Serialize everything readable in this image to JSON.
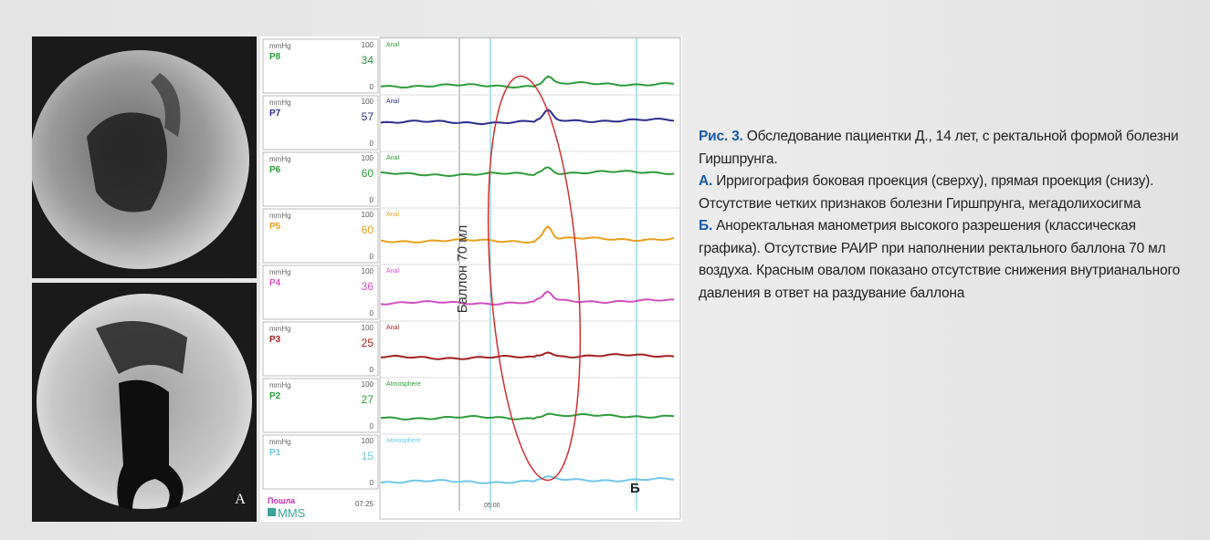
{
  "figure": {
    "panel_a_label": "А",
    "panel_b_label": "Б",
    "balloon_label": "Баллон 70 мл",
    "unit": "mmHg",
    "scale_max": 100,
    "scale_min": 0,
    "channels": [
      {
        "name": "P8",
        "value": 34,
        "site": "Anal"
      },
      {
        "name": "P7",
        "value": 57,
        "site": "Anal"
      },
      {
        "name": "P6",
        "value": 60,
        "site": "Anal"
      },
      {
        "name": "P5",
        "value": 60,
        "site": "Anal"
      },
      {
        "name": "P4",
        "value": 36,
        "site": "Anal"
      },
      {
        "name": "P3",
        "value": 25,
        "site": "Anal"
      },
      {
        "name": "P2",
        "value": 27,
        "site": "Atmosphere"
      },
      {
        "name": "P1",
        "value": 15,
        "site": "Atmosphere"
      }
    ],
    "marker_label": "Пошла",
    "time_left": "07:25",
    "time_axis": "05:00",
    "logo": "MMS"
  },
  "caption": {
    "title": "Рис. 3.",
    "text": "Обследование пациентки Д., 14 лет, с ректальной формой болезни Гиршпрунга.",
    "items": [
      {
        "label": "А.",
        "text": "Ирригография боковая проекция (сверху), прямая проекция (снизу). Отсутствие четких признаков болезни Гиршпрунга, мегадолихосигма"
      },
      {
        "label": "Б.",
        "text": "Аноректальная манометрия высокого разрешения (классическая графика). Отсутствие РАИР при наполнении ректального баллона 70 мл воздуха. Красным овалом показано отсутствие снижения внутрианального давления в ответ на раздувание баллона"
      }
    ]
  }
}
